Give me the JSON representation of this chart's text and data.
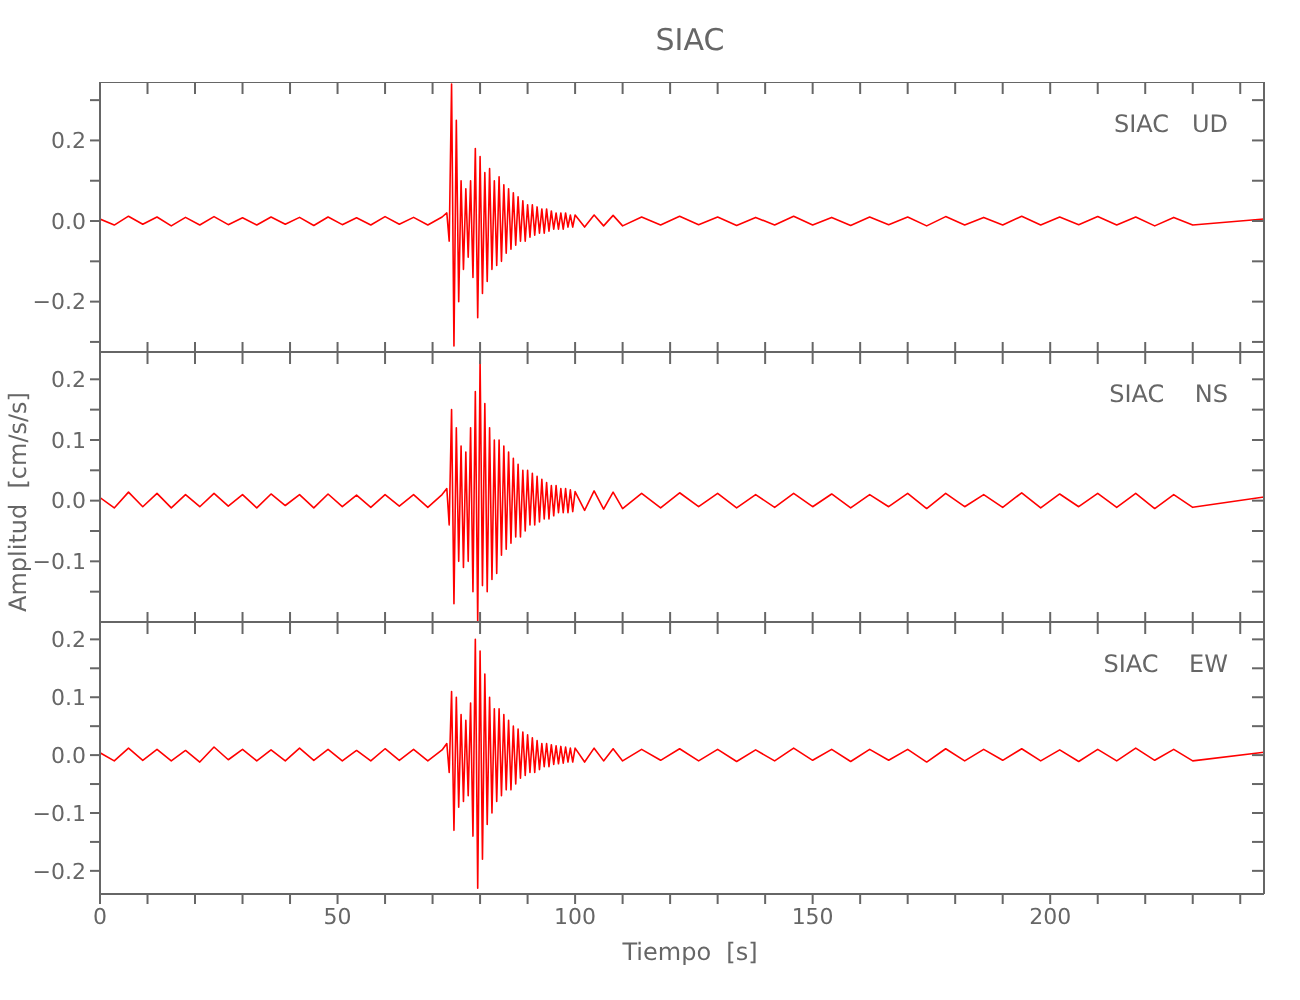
{
  "chart_data": [
    {
      "type": "line",
      "title": "SIAC",
      "annotations": [
        "SIAC   UD"
      ],
      "tick_labels": "y",
      "xlim": [
        0,
        245
      ],
      "ylim": [
        -0.325,
        0.345
      ],
      "xticks": [
        {
          "value": 0,
          "label": null
        },
        {
          "value": 10,
          "label": null
        },
        {
          "value": 20,
          "label": null
        },
        {
          "value": 30,
          "label": null
        },
        {
          "value": 40,
          "label": null
        },
        {
          "value": 50,
          "label": null
        },
        {
          "value": 60,
          "label": null
        },
        {
          "value": 70,
          "label": null
        },
        {
          "value": 80,
          "label": null
        },
        {
          "value": 90,
          "label": null
        },
        {
          "value": 100,
          "label": null
        },
        {
          "value": 110,
          "label": null
        },
        {
          "value": 120,
          "label": null
        },
        {
          "value": 130,
          "label": null
        },
        {
          "value": 140,
          "label": null
        },
        {
          "value": 150,
          "label": null
        },
        {
          "value": 160,
          "label": null
        },
        {
          "value": 170,
          "label": null
        },
        {
          "value": 180,
          "label": null
        },
        {
          "value": 190,
          "label": null
        },
        {
          "value": 200,
          "label": null
        },
        {
          "value": 210,
          "label": null
        },
        {
          "value": 220,
          "label": null
        },
        {
          "value": 230,
          "label": null
        },
        {
          "value": 240,
          "label": null
        }
      ],
      "yticks": [
        {
          "value": -0.3,
          "label": null
        },
        {
          "value": -0.2,
          "label": "−0.2"
        },
        {
          "value": -0.1,
          "label": null
        },
        {
          "value": 0,
          "label": "0.0"
        },
        {
          "value": 0.1,
          "label": null
        },
        {
          "value": 0.2,
          "label": "0.2"
        },
        {
          "value": 0.3,
          "label": null
        }
      ],
      "x": [
        0,
        3,
        6,
        9,
        12,
        15,
        18,
        21,
        24,
        27,
        30,
        33,
        36,
        39,
        42,
        45,
        48,
        51,
        54,
        57,
        60,
        63,
        66,
        69,
        72,
        73,
        73.5,
        74,
        74.5,
        75,
        75.5,
        76,
        76.5,
        77,
        77.5,
        78,
        78.5,
        79,
        79.5,
        80,
        80.5,
        81,
        81.5,
        82,
        82.5,
        83,
        83.5,
        84,
        84.5,
        85,
        85.5,
        86,
        86.5,
        87,
        87.5,
        88,
        88.5,
        89,
        89.5,
        90,
        90.5,
        91,
        91.5,
        92,
        92.5,
        93,
        93.5,
        94,
        94.5,
        95,
        95.5,
        96,
        96.5,
        97,
        97.5,
        98,
        98.5,
        99,
        99.5,
        100,
        102,
        104,
        106,
        108,
        110,
        114,
        118,
        122,
        126,
        130,
        134,
        138,
        142,
        146,
        150,
        154,
        158,
        162,
        166,
        170,
        174,
        178,
        182,
        186,
        190,
        194,
        198,
        202,
        206,
        210,
        214,
        218,
        222,
        226,
        230,
        245
      ],
      "series": [
        {
          "color": "#ff0000",
          "values": [
            0.005,
            -0.01,
            0.012,
            -0.008,
            0.01,
            -0.012,
            0.009,
            -0.01,
            0.011,
            -0.009,
            0.008,
            -0.01,
            0.01,
            -0.008,
            0.009,
            -0.011,
            0.01,
            -0.009,
            0.008,
            -0.01,
            0.011,
            -0.008,
            0.009,
            -0.01,
            0.01,
            0.02,
            -0.05,
            0.34,
            -0.31,
            0.25,
            -0.2,
            0.1,
            -0.12,
            0.08,
            -0.09,
            0.1,
            -0.14,
            0.18,
            -0.24,
            0.16,
            -0.18,
            0.12,
            -0.15,
            0.13,
            -0.12,
            0.1,
            -0.11,
            0.11,
            -0.1,
            0.09,
            -0.08,
            0.08,
            -0.07,
            0.07,
            -0.06,
            0.06,
            -0.05,
            0.05,
            -0.05,
            0.04,
            -0.04,
            0.04,
            -0.035,
            0.035,
            -0.03,
            0.03,
            -0.03,
            0.03,
            -0.025,
            0.025,
            -0.02,
            0.02,
            -0.02,
            0.02,
            -0.02,
            0.02,
            -0.015,
            0.015,
            -0.015,
            0.015,
            -0.015,
            0.015,
            -0.012,
            0.014,
            -0.012,
            0.01,
            -0.01,
            0.012,
            -0.009,
            0.01,
            -0.011,
            0.009,
            -0.01,
            0.012,
            -0.01,
            0.009,
            -0.011,
            0.01,
            -0.009,
            0.01,
            -0.012,
            0.011,
            -0.01,
            0.009,
            -0.01,
            0.012,
            -0.01,
            0.01,
            -0.009,
            0.011,
            -0.01,
            0.01,
            -0.012,
            0.009,
            -0.01,
            0.005
          ]
        }
      ]
    },
    {
      "type": "line",
      "ylabel": "Amplitud  [cm/s/s]",
      "annotations": [
        "SIAC    NS"
      ],
      "tick_labels": "y",
      "xlim": [
        0,
        245
      ],
      "ylim": [
        -0.2,
        0.245
      ],
      "xticks": [
        {
          "value": 0,
          "label": null
        },
        {
          "value": 10,
          "label": null
        },
        {
          "value": 20,
          "label": null
        },
        {
          "value": 30,
          "label": null
        },
        {
          "value": 40,
          "label": null
        },
        {
          "value": 50,
          "label": null
        },
        {
          "value": 60,
          "label": null
        },
        {
          "value": 70,
          "label": null
        },
        {
          "value": 80,
          "label": null
        },
        {
          "value": 90,
          "label": null
        },
        {
          "value": 100,
          "label": null
        },
        {
          "value": 110,
          "label": null
        },
        {
          "value": 120,
          "label": null
        },
        {
          "value": 130,
          "label": null
        },
        {
          "value": 140,
          "label": null
        },
        {
          "value": 150,
          "label": null
        },
        {
          "value": 160,
          "label": null
        },
        {
          "value": 170,
          "label": null
        },
        {
          "value": 180,
          "label": null
        },
        {
          "value": 190,
          "label": null
        },
        {
          "value": 200,
          "label": null
        },
        {
          "value": 210,
          "label": null
        },
        {
          "value": 220,
          "label": null
        },
        {
          "value": 230,
          "label": null
        },
        {
          "value": 240,
          "label": null
        }
      ],
      "yticks": [
        {
          "value": -0.15,
          "label": null
        },
        {
          "value": -0.1,
          "label": "−0.1"
        },
        {
          "value": -0.05,
          "label": null
        },
        {
          "value": 0,
          "label": "0.0"
        },
        {
          "value": 0.05,
          "label": null
        },
        {
          "value": 0.1,
          "label": "0.1"
        },
        {
          "value": 0.15,
          "label": null
        },
        {
          "value": 0.2,
          "label": "0.2"
        }
      ],
      "x": [
        0,
        3,
        6,
        9,
        12,
        15,
        18,
        21,
        24,
        27,
        30,
        33,
        36,
        39,
        42,
        45,
        48,
        51,
        54,
        57,
        60,
        63,
        66,
        69,
        72,
        73,
        73.5,
        74,
        74.5,
        75,
        75.5,
        76,
        76.5,
        77,
        77.5,
        78,
        78.5,
        79,
        79.5,
        80,
        80.5,
        81,
        81.5,
        82,
        82.5,
        83,
        83.5,
        84,
        84.5,
        85,
        85.5,
        86,
        86.5,
        87,
        87.5,
        88,
        88.5,
        89,
        89.5,
        90,
        90.5,
        91,
        91.5,
        92,
        92.5,
        93,
        93.5,
        94,
        94.5,
        95,
        95.5,
        96,
        96.5,
        97,
        97.5,
        98,
        98.5,
        99,
        99.5,
        100,
        102,
        104,
        106,
        108,
        110,
        114,
        118,
        122,
        126,
        130,
        134,
        138,
        142,
        146,
        150,
        154,
        158,
        162,
        166,
        170,
        174,
        178,
        182,
        186,
        190,
        194,
        198,
        202,
        206,
        210,
        214,
        218,
        222,
        226,
        230,
        245
      ],
      "series": [
        {
          "color": "#ff0000",
          "values": [
            0.005,
            -0.012,
            0.014,
            -0.01,
            0.012,
            -0.012,
            0.01,
            -0.01,
            0.012,
            -0.009,
            0.01,
            -0.012,
            0.011,
            -0.008,
            0.01,
            -0.012,
            0.011,
            -0.01,
            0.009,
            -0.011,
            0.01,
            -0.009,
            0.01,
            -0.011,
            0.01,
            0.02,
            -0.04,
            0.15,
            -0.17,
            0.12,
            -0.1,
            0.09,
            -0.11,
            0.08,
            -0.1,
            0.12,
            -0.15,
            0.18,
            -0.2,
            0.23,
            -0.14,
            0.16,
            -0.15,
            0.12,
            -0.13,
            0.1,
            -0.12,
            0.1,
            -0.09,
            0.09,
            -0.08,
            0.08,
            -0.07,
            0.07,
            -0.06,
            0.06,
            -0.06,
            0.05,
            -0.05,
            0.05,
            -0.04,
            0.045,
            -0.04,
            0.04,
            -0.035,
            0.035,
            -0.03,
            0.03,
            -0.03,
            0.025,
            -0.025,
            0.025,
            -0.02,
            0.02,
            -0.02,
            0.02,
            -0.02,
            0.018,
            -0.018,
            0.015,
            -0.016,
            0.016,
            -0.014,
            0.014,
            -0.013,
            0.012,
            -0.012,
            0.013,
            -0.01,
            0.012,
            -0.012,
            0.01,
            -0.011,
            0.012,
            -0.01,
            0.011,
            -0.012,
            0.01,
            -0.01,
            0.012,
            -0.013,
            0.012,
            -0.01,
            0.01,
            -0.011,
            0.013,
            -0.012,
            0.011,
            -0.01,
            0.012,
            -0.011,
            0.012,
            -0.013,
            0.01,
            -0.011,
            0.006
          ]
        }
      ]
    },
    {
      "type": "line",
      "xlabel": "Tiempo  [s]",
      "annotations": [
        "SIAC    EW"
      ],
      "xlim": [
        0,
        245
      ],
      "ylim": [
        -0.24,
        0.23
      ],
      "xticks": [
        0,
        {
          "value": 10,
          "label": null
        },
        {
          "value": 20,
          "label": null
        },
        {
          "value": 30,
          "label": null
        },
        {
          "value": 40,
          "label": null
        },
        50,
        {
          "value": 60,
          "label": null
        },
        {
          "value": 70,
          "label": null
        },
        {
          "value": 80,
          "label": null
        },
        {
          "value": 90,
          "label": null
        },
        100,
        {
          "value": 110,
          "label": null
        },
        {
          "value": 120,
          "label": null
        },
        {
          "value": 130,
          "label": null
        },
        {
          "value": 140,
          "label": null
        },
        150,
        {
          "value": 160,
          "label": null
        },
        {
          "value": 170,
          "label": null
        },
        {
          "value": 180,
          "label": null
        },
        {
          "value": 190,
          "label": null
        },
        200,
        {
          "value": 210,
          "label": null
        },
        {
          "value": 220,
          "label": null
        },
        {
          "value": 230,
          "label": null
        },
        {
          "value": 240,
          "label": null
        }
      ],
      "yticks": [
        {
          "value": -0.2,
          "label": "−0.2"
        },
        {
          "value": -0.15,
          "label": null
        },
        {
          "value": -0.1,
          "label": "−0.1"
        },
        {
          "value": -0.05,
          "label": null
        },
        {
          "value": 0,
          "label": "0.0"
        },
        {
          "value": 0.05,
          "label": null
        },
        {
          "value": 0.1,
          "label": "0.1"
        },
        {
          "value": 0.15,
          "label": null
        },
        {
          "value": 0.2,
          "label": "0.2"
        }
      ],
      "x": [
        0,
        3,
        6,
        9,
        12,
        15,
        18,
        21,
        24,
        27,
        30,
        33,
        36,
        39,
        42,
        45,
        48,
        51,
        54,
        57,
        60,
        63,
        66,
        69,
        72,
        73,
        73.5,
        74,
        74.5,
        75,
        75.5,
        76,
        76.5,
        77,
        77.5,
        78,
        78.5,
        79,
        79.5,
        80,
        80.5,
        81,
        81.5,
        82,
        82.5,
        83,
        83.5,
        84,
        84.5,
        85,
        85.5,
        86,
        86.5,
        87,
        87.5,
        88,
        88.5,
        89,
        89.5,
        90,
        90.5,
        91,
        91.5,
        92,
        92.5,
        93,
        93.5,
        94,
        94.5,
        95,
        95.5,
        96,
        96.5,
        97,
        97.5,
        98,
        98.5,
        99,
        99.5,
        100,
        102,
        104,
        106,
        108,
        110,
        114,
        118,
        122,
        126,
        130,
        134,
        138,
        142,
        146,
        150,
        154,
        158,
        162,
        166,
        170,
        174,
        178,
        182,
        186,
        190,
        194,
        198,
        202,
        206,
        210,
        214,
        218,
        222,
        226,
        230,
        245
      ],
      "series": [
        {
          "color": "#ff0000",
          "values": [
            0.004,
            -0.01,
            0.012,
            -0.009,
            0.01,
            -0.01,
            0.008,
            -0.012,
            0.014,
            -0.008,
            0.01,
            -0.01,
            0.009,
            -0.01,
            0.012,
            -0.009,
            0.01,
            -0.01,
            0.008,
            -0.01,
            0.011,
            -0.009,
            0.01,
            -0.01,
            0.009,
            0.02,
            -0.03,
            0.11,
            -0.13,
            0.1,
            -0.09,
            0.07,
            -0.08,
            0.06,
            -0.07,
            0.09,
            -0.14,
            0.2,
            -0.23,
            0.18,
            -0.18,
            0.14,
            -0.12,
            0.1,
            -0.1,
            0.08,
            -0.08,
            0.08,
            -0.07,
            0.07,
            -0.06,
            0.06,
            -0.06,
            0.05,
            -0.05,
            0.045,
            -0.04,
            0.04,
            -0.035,
            0.035,
            -0.03,
            0.03,
            -0.03,
            0.025,
            -0.025,
            0.02,
            -0.02,
            0.02,
            -0.02,
            0.018,
            -0.016,
            0.016,
            -0.015,
            0.015,
            -0.014,
            0.014,
            -0.012,
            0.012,
            -0.012,
            0.012,
            -0.012,
            0.012,
            -0.01,
            0.011,
            -0.01,
            0.01,
            -0.009,
            0.011,
            -0.01,
            0.01,
            -0.011,
            0.009,
            -0.01,
            0.012,
            -0.009,
            0.01,
            -0.011,
            0.01,
            -0.009,
            0.01,
            -0.012,
            0.011,
            -0.01,
            0.01,
            -0.009,
            0.011,
            -0.01,
            0.009,
            -0.011,
            0.01,
            -0.01,
            0.012,
            -0.009,
            0.01,
            -0.01,
            0.005
          ]
        }
      ]
    }
  ]
}
